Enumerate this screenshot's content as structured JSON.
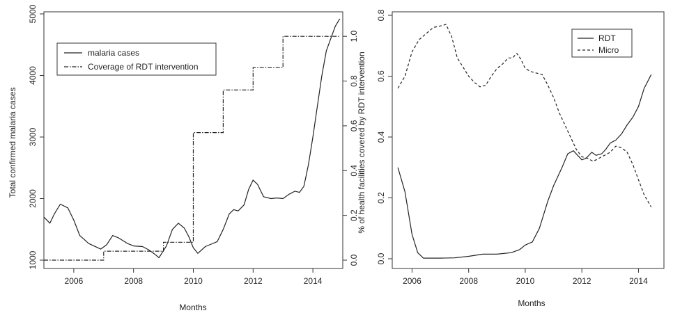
{
  "chart_data": [
    {
      "type": "line",
      "xlabel": "Months",
      "ylabel": "Total confirmed malaria cases",
      "y2label": "",
      "xlim": [
        2005,
        2015
      ],
      "ylim": [
        1000,
        5000
      ],
      "y2lim": [
        0,
        1.1
      ],
      "x_ticks": [
        2006,
        2008,
        2010,
        2012,
        2014
      ],
      "y_ticks": [
        1000,
        2000,
        3000,
        4000,
        5000
      ],
      "y2_ticks": [
        0.0,
        0.2,
        0.4,
        0.6,
        0.8,
        1.0
      ],
      "legend_position": "top-left",
      "grid": false,
      "series": [
        {
          "name": "malaria cases",
          "axis": "left",
          "style": "solid",
          "x": [
            2005.0,
            2005.2,
            2005.35,
            2005.55,
            2005.8,
            2006.0,
            2006.2,
            2006.5,
            2006.9,
            2007.1,
            2007.3,
            2007.5,
            2007.8,
            2008.0,
            2008.3,
            2008.5,
            2008.7,
            2008.85,
            2009.1,
            2009.3,
            2009.5,
            2009.7,
            2009.85,
            2010.0,
            2010.15,
            2010.4,
            2010.6,
            2010.8,
            2011.0,
            2011.2,
            2011.35,
            2011.5,
            2011.7,
            2011.85,
            2012.0,
            2012.15,
            2012.35,
            2012.6,
            2012.8,
            2013.0,
            2013.2,
            2013.4,
            2013.55,
            2013.7,
            2013.85,
            2014.0,
            2014.15,
            2014.3,
            2014.45,
            2014.6,
            2014.75,
            2014.9
          ],
          "y": [
            1700,
            1600,
            1750,
            1910,
            1850,
            1650,
            1400,
            1270,
            1180,
            1250,
            1400,
            1360,
            1270,
            1230,
            1220,
            1170,
            1100,
            1040,
            1230,
            1500,
            1600,
            1520,
            1380,
            1200,
            1110,
            1220,
            1260,
            1300,
            1500,
            1750,
            1820,
            1800,
            1900,
            2150,
            2300,
            2230,
            2030,
            2000,
            2010,
            2000,
            2070,
            2120,
            2100,
            2200,
            2550,
            3000,
            3500,
            4000,
            4400,
            4600,
            4800,
            4920
          ]
        },
        {
          "name": "Coverage of RDT intervention",
          "axis": "right",
          "style": "dot-dash",
          "steps": [
            {
              "x_start": 2005.0,
              "x_end": 2007.0,
              "y": 0.0
            },
            {
              "x_start": 2007.0,
              "x_end": 2009.0,
              "y": 0.04
            },
            {
              "x_start": 2009.0,
              "x_end": 2010.0,
              "y": 0.08
            },
            {
              "x_start": 2010.0,
              "x_end": 2011.0,
              "y": 0.57
            },
            {
              "x_start": 2011.0,
              "x_end": 2012.0,
              "y": 0.76
            },
            {
              "x_start": 2012.0,
              "x_end": 2013.0,
              "y": 0.86
            },
            {
              "x_start": 2013.0,
              "x_end": 2014.9,
              "y": 1.0
            }
          ]
        }
      ]
    },
    {
      "type": "line",
      "xlabel": "Months",
      "ylabel": "% of health facilities covered by RDT intervention",
      "xlim": [
        2005.3,
        2014.9
      ],
      "ylim": [
        0,
        0.8
      ],
      "x_ticks": [
        2006,
        2008,
        2010,
        2012,
        2014
      ],
      "y_ticks": [
        0.0,
        0.2,
        0.4,
        0.6,
        0.8
      ],
      "legend_position": "top-right",
      "grid": false,
      "series": [
        {
          "name": "RDT",
          "style": "solid",
          "x": [
            2005.5,
            2005.75,
            2006.0,
            2006.2,
            2006.4,
            2006.6,
            2007.0,
            2007.5,
            2008.0,
            2008.5,
            2009.0,
            2009.5,
            2009.8,
            2010.0,
            2010.25,
            2010.5,
            2010.8,
            2011.0,
            2011.3,
            2011.5,
            2011.7,
            2011.85,
            2012.0,
            2012.15,
            2012.35,
            2012.5,
            2012.7,
            2012.85,
            2013.0,
            2013.2,
            2013.4,
            2013.6,
            2013.8,
            2014.0,
            2014.2,
            2014.45
          ],
          "y": [
            0.3,
            0.22,
            0.08,
            0.02,
            0.002,
            0.002,
            0.002,
            0.003,
            0.008,
            0.015,
            0.015,
            0.02,
            0.03,
            0.045,
            0.055,
            0.1,
            0.19,
            0.24,
            0.3,
            0.345,
            0.355,
            0.34,
            0.325,
            0.33,
            0.35,
            0.34,
            0.345,
            0.36,
            0.38,
            0.39,
            0.41,
            0.44,
            0.465,
            0.5,
            0.56,
            0.605
          ]
        },
        {
          "name": "Micro",
          "style": "dashed",
          "x": [
            2005.5,
            2005.75,
            2006.0,
            2006.25,
            2006.5,
            2006.75,
            2007.0,
            2007.2,
            2007.4,
            2007.6,
            2007.8,
            2008.0,
            2008.2,
            2008.4,
            2008.6,
            2008.8,
            2009.0,
            2009.2,
            2009.4,
            2009.55,
            2009.7,
            2009.85,
            2010.0,
            2010.2,
            2010.4,
            2010.6,
            2010.8,
            2011.0,
            2011.2,
            2011.4,
            2011.6,
            2011.8,
            2012.0,
            2012.2,
            2012.4,
            2012.6,
            2012.8,
            2013.0,
            2013.2,
            2013.4,
            2013.6,
            2013.8,
            2014.0,
            2014.2,
            2014.45
          ],
          "y": [
            0.56,
            0.6,
            0.68,
            0.72,
            0.74,
            0.76,
            0.765,
            0.77,
            0.73,
            0.66,
            0.63,
            0.6,
            0.58,
            0.565,
            0.57,
            0.6,
            0.625,
            0.64,
            0.66,
            0.66,
            0.675,
            0.655,
            0.625,
            0.615,
            0.61,
            0.605,
            0.57,
            0.53,
            0.48,
            0.44,
            0.4,
            0.36,
            0.335,
            0.33,
            0.32,
            0.33,
            0.34,
            0.35,
            0.37,
            0.365,
            0.35,
            0.31,
            0.26,
            0.21,
            0.17
          ]
        }
      ]
    }
  ]
}
